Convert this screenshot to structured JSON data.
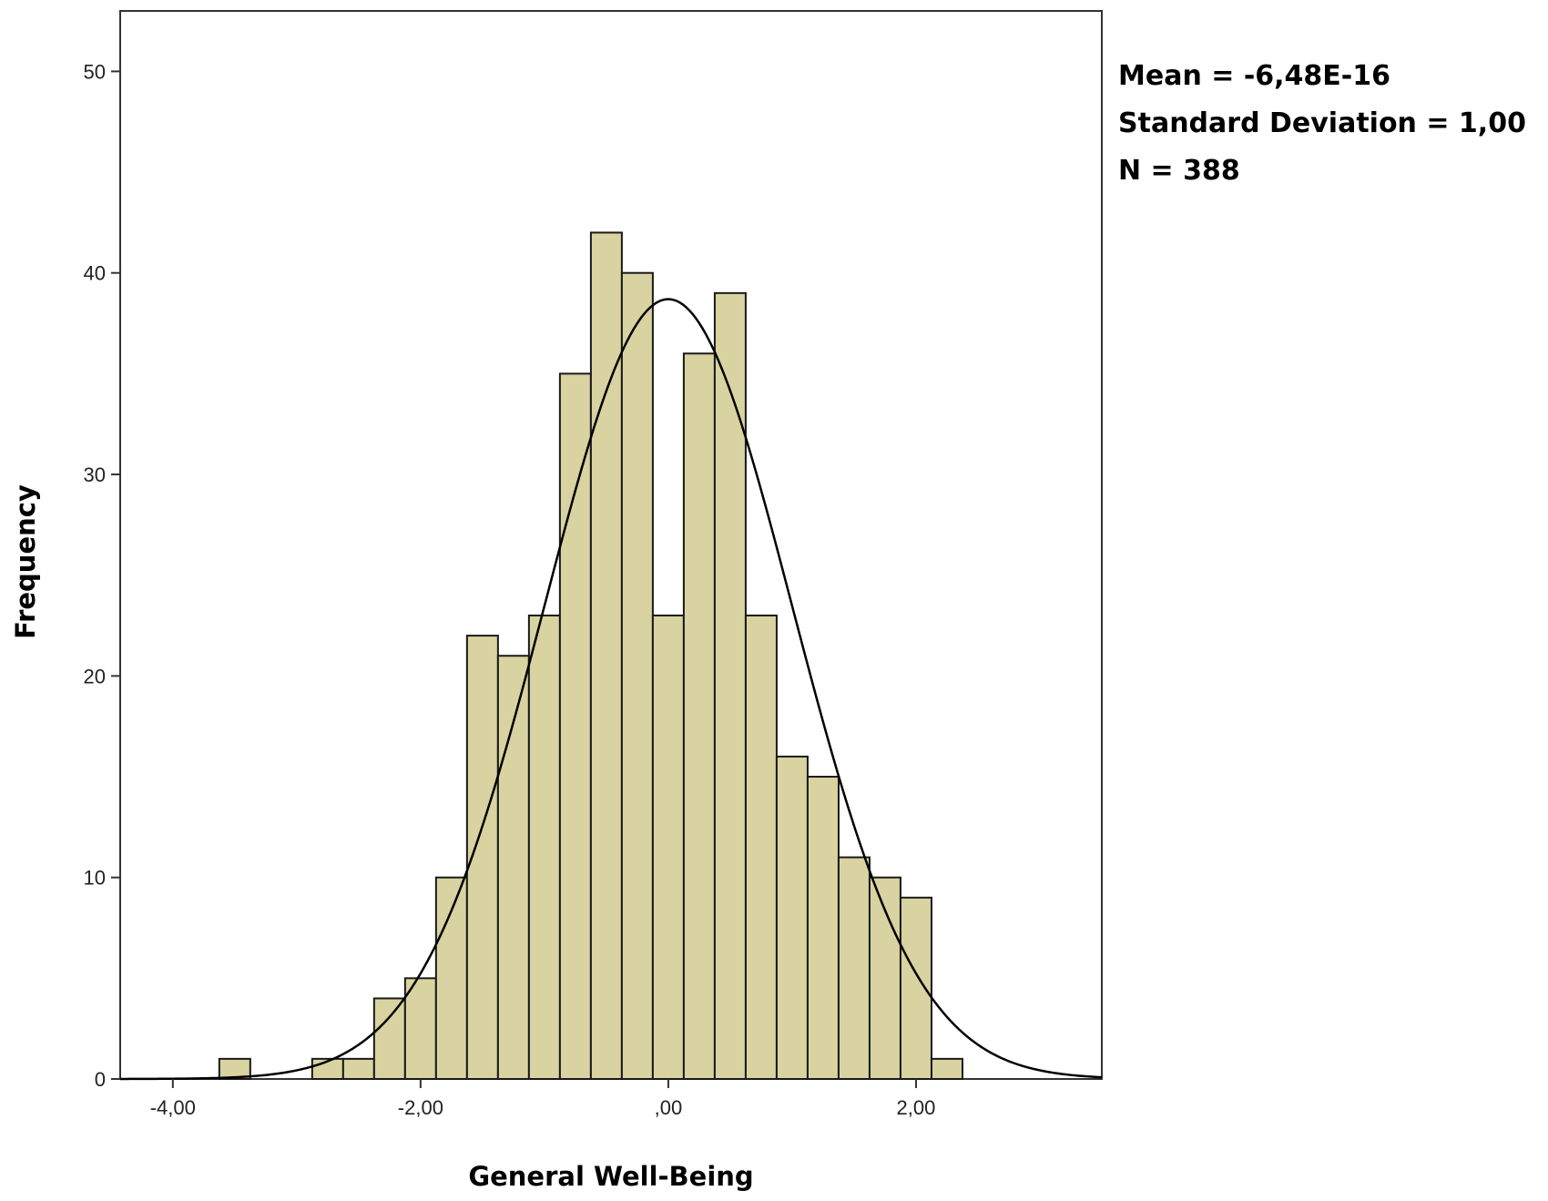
{
  "chart_data": {
    "type": "bar",
    "subtype": "histogram",
    "xlabel": "General Well-Being",
    "ylabel": "Frequency",
    "xlim": [
      -4.425,
      3.5
    ],
    "ylim": [
      0,
      53
    ],
    "x_ticks": [
      -4,
      -2,
      0,
      2
    ],
    "x_tick_labels": [
      "-4,00",
      "-2,00",
      ",00",
      "2,00"
    ],
    "y_ticks": [
      0,
      10,
      20,
      30,
      40,
      50
    ],
    "y_tick_labels": [
      "0",
      "10",
      "20",
      "30",
      "40",
      "50"
    ],
    "bin_width": 0.25,
    "bins": [
      {
        "x0": -3.625,
        "count": 1
      },
      {
        "x0": -2.875,
        "count": 1
      },
      {
        "x0": -2.625,
        "count": 1
      },
      {
        "x0": -2.375,
        "count": 4
      },
      {
        "x0": -2.125,
        "count": 5
      },
      {
        "x0": -1.875,
        "count": 10
      },
      {
        "x0": -1.625,
        "count": 22
      },
      {
        "x0": -1.375,
        "count": 21
      },
      {
        "x0": -1.125,
        "count": 23
      },
      {
        "x0": -0.875,
        "count": 35
      },
      {
        "x0": -0.625,
        "count": 42
      },
      {
        "x0": -0.375,
        "count": 40
      },
      {
        "x0": -0.125,
        "count": 23
      },
      {
        "x0": 0.125,
        "count": 36
      },
      {
        "x0": 0.375,
        "count": 39
      },
      {
        "x0": 0.625,
        "count": 23
      },
      {
        "x0": 0.875,
        "count": 16
      },
      {
        "x0": 1.125,
        "count": 15
      },
      {
        "x0": 1.375,
        "count": 11
      },
      {
        "x0": 1.625,
        "count": 10
      },
      {
        "x0": 1.875,
        "count": 9
      },
      {
        "x0": 2.125,
        "count": 1
      }
    ],
    "normal_curve": {
      "mean": 0,
      "sd": 1.0,
      "n": 388
    },
    "grid": false,
    "bar_color": "#d8d3a0",
    "bar_edge_color": "#1a1a1a",
    "curve_color": "#000000"
  },
  "stats": {
    "mean": "Mean = -6,48E-16",
    "sd": "Standard Deviation = 1,00",
    "n": "N = 388"
  }
}
